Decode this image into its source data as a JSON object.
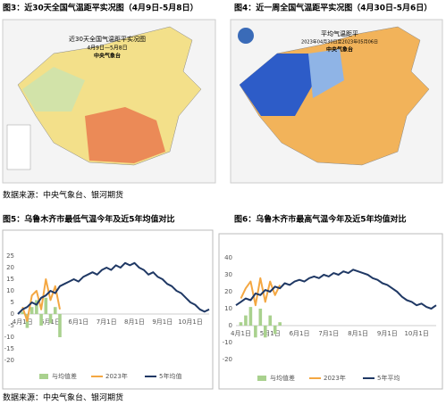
{
  "figures": [
    {
      "caption": "图3：近30天全国气温距平实况图（4月9日-5月8日）",
      "map_title": "近30天全国气温距平实况图",
      "map_subtitle": "4月9日—5月8日",
      "map_source": "中央气象台"
    },
    {
      "caption": "图4：近一周全国气温距平实况图（4月30日-5月6日）",
      "map_title": "平均气温距平",
      "map_subtitle": "2023年04月30日至2023年05月06日",
      "map_source": "中央气象台"
    }
  ],
  "sources": [
    "数据来源：中央气象台、银河期货",
    "数据来源：中央气象台、银河期货"
  ],
  "charts": [
    {
      "type": "line",
      "caption": "图5：乌鲁木齐市最低气温今年及近5年均值对比",
      "categories": [
        null,
        "4月1日",
        null,
        null,
        null,
        null,
        null,
        "5月1日",
        null,
        null,
        null,
        null,
        null,
        "6月1日",
        null,
        null,
        null,
        null,
        null,
        "7月1日",
        null,
        null,
        null,
        null,
        null,
        "8月1日",
        null,
        null,
        null,
        null,
        null,
        "9月1日",
        null,
        null,
        null,
        null,
        null,
        "10月1日",
        null,
        null,
        null,
        null
      ],
      "ylim": [
        -20,
        25
      ],
      "yticks": [
        25,
        20,
        15,
        10,
        5,
        0,
        -5,
        -10,
        -15,
        -20
      ],
      "series": [
        {
          "name": "与均值差",
          "type": "bar",
          "color": "#a9d18e",
          "values": [
            null,
            1,
            -6,
            3,
            6,
            -5,
            7,
            -4,
            3,
            -10,
            null,
            null,
            null,
            null,
            null,
            null,
            null,
            null,
            null,
            null,
            null,
            null,
            null,
            null,
            null,
            null,
            null,
            null,
            null,
            null,
            null,
            null,
            null,
            null,
            null,
            null,
            null,
            null,
            null,
            null,
            null,
            null
          ]
        },
        {
          "name": "2023年",
          "type": "line",
          "color": "#f4a742",
          "values": [
            null,
            3,
            -3,
            8,
            10,
            2,
            15,
            6,
            12,
            2,
            null,
            null,
            null,
            null,
            null,
            null,
            null,
            null,
            null,
            null,
            null,
            null,
            null,
            null,
            null,
            null,
            null,
            null,
            null,
            null,
            null,
            null,
            null,
            null,
            null,
            null,
            null,
            null,
            null,
            null,
            null,
            null
          ]
        },
        {
          "name": "5年均值",
          "type": "line",
          "color": "#1f3864",
          "values": [
            0,
            2,
            3,
            5,
            4,
            7,
            8,
            10,
            9,
            12,
            13,
            14,
            15,
            14,
            16,
            17,
            18,
            17,
            19,
            20,
            19,
            21,
            20,
            22,
            21,
            22,
            20,
            19,
            17,
            18,
            16,
            15,
            13,
            12,
            10,
            9,
            7,
            5,
            4,
            2,
            1,
            2
          ]
        }
      ]
    },
    {
      "type": "line",
      "caption": "图6：乌鲁木齐市最高气温今年及近5年均值对比",
      "categories": [
        null,
        "4月1日",
        null,
        null,
        null,
        null,
        null,
        "5月1日",
        null,
        null,
        null,
        null,
        null,
        "6月1日",
        null,
        null,
        null,
        null,
        null,
        "7月1日",
        null,
        null,
        null,
        null,
        null,
        "8月1日",
        null,
        null,
        null,
        null,
        null,
        "9月1日",
        null,
        null,
        null,
        null,
        null,
        "10月1日",
        null,
        null,
        null,
        null
      ],
      "ylim": [
        -20,
        40
      ],
      "yticks": [
        40,
        30,
        20,
        10,
        0,
        -10,
        -20
      ],
      "series": [
        {
          "name": "与均值差",
          "type": "bar",
          "color": "#a9d18e",
          "values": [
            null,
            2,
            6,
            11,
            -7,
            10,
            -7,
            6,
            -5,
            2,
            null,
            null,
            null,
            null,
            null,
            null,
            null,
            null,
            null,
            null,
            null,
            null,
            null,
            null,
            null,
            null,
            null,
            null,
            null,
            null,
            null,
            null,
            null,
            null,
            null,
            null,
            null,
            null,
            null,
            null,
            null,
            null
          ]
        },
        {
          "name": "2023年",
          "type": "line",
          "color": "#f4a742",
          "values": [
            null,
            16,
            22,
            26,
            12,
            28,
            14,
            26,
            18,
            24,
            null,
            null,
            null,
            null,
            null,
            null,
            null,
            null,
            null,
            null,
            null,
            null,
            null,
            null,
            null,
            null,
            null,
            null,
            null,
            null,
            null,
            null,
            null,
            null,
            null,
            null,
            null,
            null,
            null,
            null,
            null,
            null
          ]
        },
        {
          "name": "5年平均",
          "type": "line",
          "color": "#1f3864",
          "values": [
            12,
            14,
            16,
            15,
            19,
            18,
            21,
            20,
            23,
            22,
            25,
            24,
            26,
            27,
            26,
            28,
            29,
            28,
            30,
            29,
            31,
            30,
            32,
            31,
            33,
            32,
            31,
            30,
            28,
            27,
            25,
            24,
            22,
            20,
            17,
            15,
            14,
            12,
            13,
            11,
            10,
            12
          ]
        }
      ]
    }
  ]
}
